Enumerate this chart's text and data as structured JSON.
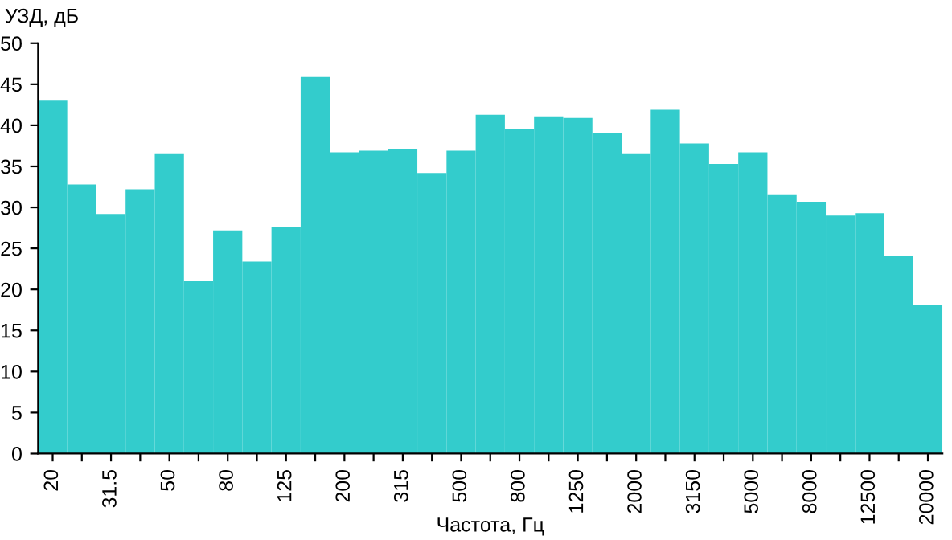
{
  "chart_data": {
    "type": "bar",
    "ylabel": "УЗД, дБ",
    "xlabel": "Частота, Гц",
    "categories": [
      "20",
      null,
      "31.5",
      null,
      "50",
      null,
      "80",
      null,
      "125",
      null,
      "200",
      null,
      "315",
      null,
      "500",
      null,
      "800",
      null,
      "1250",
      null,
      "2000",
      null,
      "3150",
      null,
      "5000",
      null,
      "8000",
      null,
      "12500",
      null,
      "20000"
    ],
    "values": [
      43.0,
      32.8,
      29.2,
      32.2,
      36.5,
      21.0,
      27.2,
      23.4,
      27.6,
      45.9,
      36.7,
      36.9,
      37.1,
      34.2,
      36.9,
      41.3,
      39.6,
      41.1,
      40.9,
      39.0,
      36.5,
      41.9,
      37.8,
      35.3,
      36.7,
      31.5,
      30.7,
      29.0,
      29.3,
      24.1,
      18.1
    ],
    "color": "#33cccc",
    "ylim": [
      0,
      50
    ],
    "yticks": [
      0,
      5,
      10,
      15,
      20,
      25,
      30,
      35,
      40,
      45,
      50
    ],
    "grid": false
  }
}
